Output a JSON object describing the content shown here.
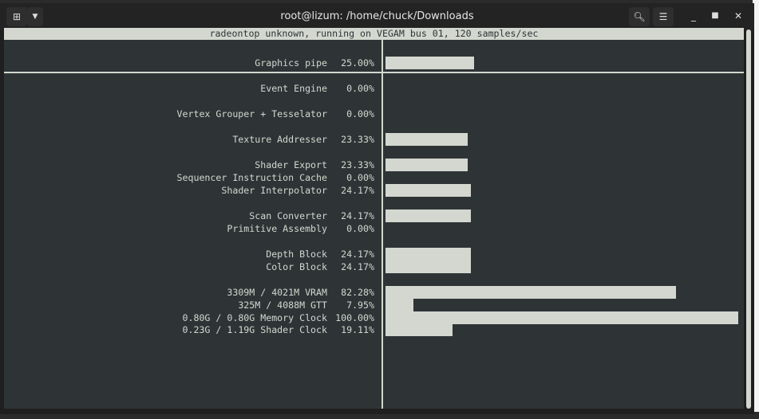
{
  "window": {
    "title": "root@lizum: /home/chuck/Downloads"
  },
  "header": "radeontop unknown, running on VEGAM bus 01, 120 samples/sec",
  "metrics": [
    {
      "label": "Graphics pipe",
      "percent": "25.00%",
      "value": 25.0
    },
    {
      "label": "Event Engine",
      "percent": "0.00%",
      "value": 0
    },
    {
      "label": "Vertex Grouper + Tesselator",
      "percent": "0.00%",
      "value": 0
    },
    {
      "label": "Texture Addresser",
      "percent": "23.33%",
      "value": 23.33
    },
    {
      "label": "Shader Export",
      "percent": "23.33%",
      "value": 23.33
    },
    {
      "label": "Sequencer Instruction Cache",
      "percent": "0.00%",
      "value": 0
    },
    {
      "label": "Shader Interpolator",
      "percent": "24.17%",
      "value": 24.17
    },
    {
      "label": "Scan Converter",
      "percent": "24.17%",
      "value": 24.17
    },
    {
      "label": "Primitive Assembly",
      "percent": "0.00%",
      "value": 0
    },
    {
      "label": "Depth Block",
      "percent": "24.17%",
      "value": 24.17
    },
    {
      "label": "Color Block",
      "percent": "24.17%",
      "value": 24.17
    },
    {
      "label": "3309M / 4021M VRAM",
      "percent": "82.28%",
      "value": 82.28
    },
    {
      "label": "325M / 4088M GTT",
      "percent": "7.95%",
      "value": 7.95
    },
    {
      "label": "0.80G / 0.80G Memory Clock",
      "percent": "100.00%",
      "value": 100
    },
    {
      "label": "0.23G / 1.19G Shader Clock",
      "percent": "19.11%",
      "value": 19.11
    }
  ],
  "colors": {
    "terminal_bg": "#2e3436",
    "foreground": "#d3d7cf"
  },
  "icons": {
    "new_tab": "new-tab-icon",
    "dropdown": "chevron-down-icon",
    "search": "search-icon",
    "menu": "hamburger-menu-icon",
    "minimize": "minimize-icon",
    "maximize": "maximize-icon",
    "close": "close-icon"
  }
}
